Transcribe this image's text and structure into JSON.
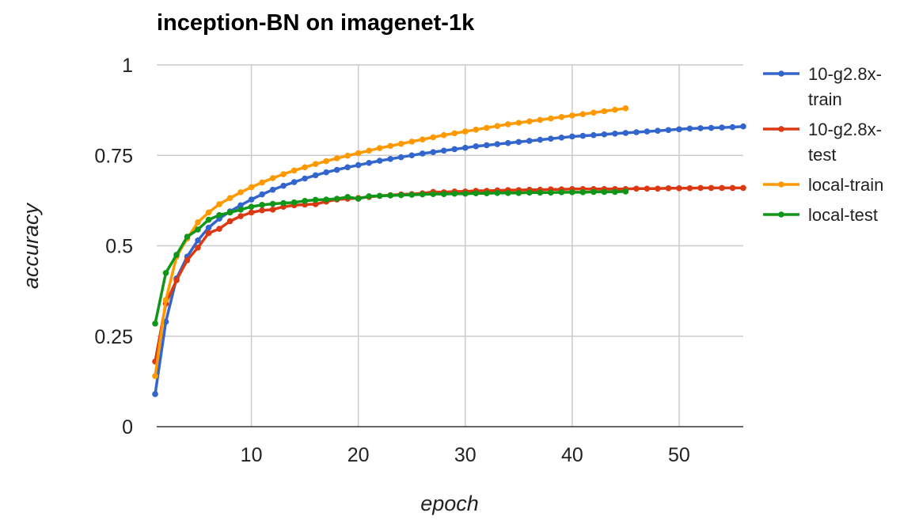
{
  "chart_data": {
    "type": "line",
    "title": "inception-BN on imagenet-1k",
    "xlabel": "epoch",
    "ylabel": "accuracy",
    "xlim": [
      1,
      56
    ],
    "ylim": [
      0,
      1
    ],
    "xticks": [
      10,
      20,
      30,
      40,
      50
    ],
    "yticks": [
      0,
      0.25,
      0.5,
      0.75,
      1
    ],
    "ytick_labels": [
      "0",
      "0.25",
      "0.5",
      "0.75",
      "1"
    ],
    "grid": true,
    "legend_position": "right",
    "series": [
      {
        "name": "10-g2.8x-train",
        "legend_lines": [
          "10-g2.8x-",
          "train"
        ],
        "color": "#3366cc",
        "x": [
          1,
          2,
          3,
          4,
          5,
          6,
          7,
          8,
          9,
          10,
          11,
          12,
          13,
          14,
          15,
          16,
          17,
          18,
          19,
          20,
          21,
          22,
          23,
          24,
          25,
          26,
          27,
          28,
          29,
          30,
          31,
          32,
          33,
          34,
          35,
          36,
          37,
          38,
          39,
          40,
          41,
          42,
          43,
          44,
          45,
          46,
          47,
          48,
          49,
          50,
          51,
          52,
          53,
          54,
          55,
          56
        ],
        "y": [
          0.09,
          0.29,
          0.41,
          0.47,
          0.515,
          0.55,
          0.575,
          0.595,
          0.612,
          0.628,
          0.642,
          0.655,
          0.666,
          0.676,
          0.686,
          0.695,
          0.703,
          0.71,
          0.717,
          0.723,
          0.729,
          0.735,
          0.74,
          0.745,
          0.75,
          0.755,
          0.759,
          0.763,
          0.767,
          0.771,
          0.775,
          0.778,
          0.781,
          0.784,
          0.787,
          0.79,
          0.793,
          0.796,
          0.799,
          0.802,
          0.804,
          0.806,
          0.808,
          0.81,
          0.812,
          0.814,
          0.816,
          0.818,
          0.82,
          0.822,
          0.824,
          0.825,
          0.826,
          0.827,
          0.828,
          0.83
        ]
      },
      {
        "name": "10-g2.8x-test",
        "legend_lines": [
          "10-g2.8x-",
          "test"
        ],
        "color": "#dc3912",
        "x": [
          1,
          2,
          3,
          4,
          5,
          6,
          7,
          8,
          9,
          10,
          11,
          12,
          13,
          14,
          15,
          16,
          17,
          18,
          19,
          20,
          21,
          22,
          23,
          24,
          25,
          26,
          27,
          28,
          29,
          30,
          31,
          32,
          33,
          34,
          35,
          36,
          37,
          38,
          39,
          40,
          41,
          42,
          43,
          44,
          45,
          46,
          47,
          48,
          49,
          50,
          51,
          52,
          53,
          54,
          55,
          56
        ],
        "y": [
          0.18,
          0.34,
          0.405,
          0.46,
          0.495,
          0.535,
          0.547,
          0.568,
          0.582,
          0.592,
          0.598,
          0.6,
          0.608,
          0.612,
          0.614,
          0.615,
          0.622,
          0.628,
          0.63,
          0.632,
          0.635,
          0.638,
          0.64,
          0.642,
          0.643,
          0.645,
          0.649,
          0.648,
          0.65,
          0.65,
          0.652,
          0.652,
          0.653,
          0.654,
          0.654,
          0.655,
          0.655,
          0.656,
          0.656,
          0.657,
          0.657,
          0.657,
          0.657,
          0.657,
          0.657,
          0.658,
          0.658,
          0.658,
          0.659,
          0.659,
          0.659,
          0.66,
          0.66,
          0.66,
          0.66,
          0.66
        ]
      },
      {
        "name": "local-train",
        "legend_lines": [
          "local-train"
        ],
        "color": "#ff9900",
        "x": [
          1,
          2,
          3,
          4,
          5,
          6,
          7,
          8,
          9,
          10,
          11,
          12,
          13,
          14,
          15,
          16,
          17,
          18,
          19,
          20,
          21,
          22,
          23,
          24,
          25,
          26,
          27,
          28,
          29,
          30,
          31,
          32,
          33,
          34,
          35,
          36,
          37,
          38,
          39,
          40,
          41,
          42,
          43,
          44,
          45
        ],
        "y": [
          0.14,
          0.35,
          0.47,
          0.52,
          0.565,
          0.592,
          0.615,
          0.632,
          0.648,
          0.662,
          0.675,
          0.687,
          0.698,
          0.708,
          0.717,
          0.726,
          0.734,
          0.742,
          0.749,
          0.756,
          0.763,
          0.77,
          0.776,
          0.782,
          0.788,
          0.794,
          0.8,
          0.806,
          0.811,
          0.816,
          0.821,
          0.826,
          0.831,
          0.836,
          0.84,
          0.844,
          0.848,
          0.852,
          0.856,
          0.86,
          0.864,
          0.868,
          0.872,
          0.876,
          0.88
        ]
      },
      {
        "name": "local-test",
        "legend_lines": [
          "local-test"
        ],
        "color": "#109618",
        "x": [
          1,
          2,
          3,
          4,
          5,
          6,
          7,
          8,
          9,
          10,
          11,
          12,
          13,
          14,
          15,
          16,
          17,
          18,
          19,
          20,
          21,
          22,
          23,
          24,
          25,
          26,
          27,
          28,
          29,
          30,
          31,
          32,
          33,
          34,
          35,
          36,
          37,
          38,
          39,
          40,
          41,
          42,
          43,
          44,
          45
        ],
        "y": [
          0.285,
          0.425,
          0.475,
          0.525,
          0.545,
          0.572,
          0.585,
          0.592,
          0.6,
          0.608,
          0.613,
          0.616,
          0.618,
          0.62,
          0.624,
          0.627,
          0.628,
          0.63,
          0.635,
          0.63,
          0.637,
          0.638,
          0.639,
          0.64,
          0.641,
          0.642,
          0.643,
          0.643,
          0.644,
          0.644,
          0.645,
          0.645,
          0.646,
          0.646,
          0.646,
          0.647,
          0.647,
          0.647,
          0.648,
          0.648,
          0.648,
          0.649,
          0.649,
          0.649,
          0.65
        ]
      }
    ]
  }
}
